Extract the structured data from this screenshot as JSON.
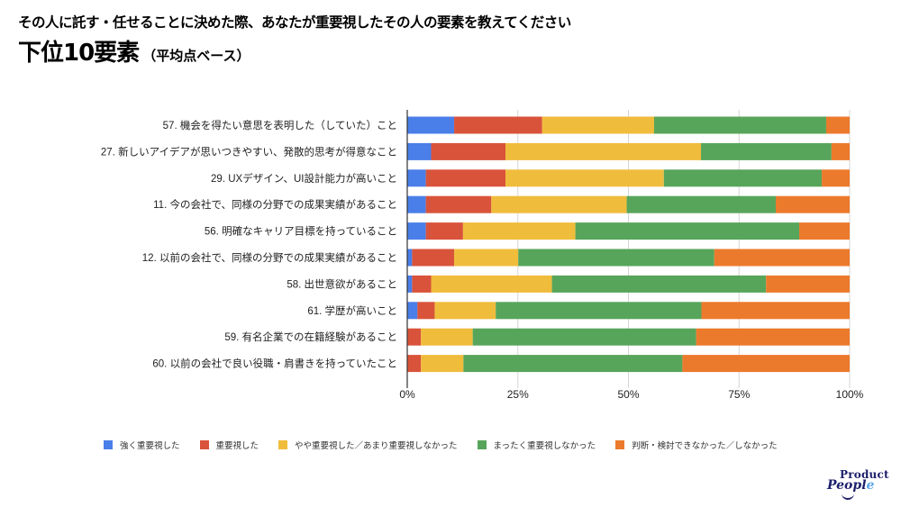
{
  "header": {
    "question": "その人に託す・任せることに決めた際、あなたが重要視したその人の要素を教えてください",
    "title_main": "下位10要素",
    "title_sub": "（平均点ベース）"
  },
  "logo": {
    "line1": "Product",
    "line2_a": "Peop",
    "line2_b": "l",
    "line2_c": "e"
  },
  "chart_data": {
    "type": "bar",
    "orientation": "horizontal",
    "stacked": "percent",
    "title": "下位10要素（平均点ベース）",
    "xlabel": "",
    "ylabel": "",
    "xlim": [
      0,
      100
    ],
    "x_ticks": [
      "0%",
      "25%",
      "50%",
      "75%",
      "100%"
    ],
    "x_tick_values": [
      0,
      25,
      50,
      75,
      100
    ],
    "grid": true,
    "legend_position": "bottom",
    "categories": [
      "57. 機会を得たい意思を表明した（していた）こと",
      "27. 新しいアイデアが思いつきやすい、発散的思考が得意なこと",
      "29. UXデザイン、UI設計能力が高いこと",
      "11. 今の会社で、同様の分野での成果実績があること",
      "56. 明確なキャリア目標を持っていること",
      "12. 以前の会社で、同様の分野での成果実績があること",
      "58. 出世意欲があること",
      "61. 学歴が高いこと",
      "59. 有名企業での在籍経験があること",
      "60. 以前の会社で良い役職・肩書きを持っていたこと"
    ],
    "series": [
      {
        "name": "強く重要視した",
        "color": "#4a7ee8",
        "values": [
          10.6,
          5.4,
          4.2,
          4.2,
          4.2,
          1.1,
          1.1,
          2.3,
          0.0,
          0.0
        ]
      },
      {
        "name": "重要視した",
        "color": "#d9533b",
        "values": [
          19.9,
          16.8,
          18.0,
          14.8,
          8.4,
          9.5,
          4.3,
          3.9,
          3.1,
          3.1
        ]
      },
      {
        "name": "やや重要視した／あまり重要視しなかった",
        "color": "#f0bc3c",
        "values": [
          25.3,
          44.2,
          35.8,
          30.6,
          25.4,
          14.5,
          27.3,
          13.8,
          11.7,
          9.6
        ]
      },
      {
        "name": "まったく重要視しなかった",
        "color": "#57a55a",
        "values": [
          38.9,
          29.5,
          35.7,
          33.7,
          50.6,
          44.3,
          48.4,
          46.5,
          50.5,
          49.5
        ]
      },
      {
        "name": "判断・検討できなかった／しなかった",
        "color": "#ec7a2c",
        "values": [
          5.3,
          4.1,
          6.3,
          16.7,
          11.4,
          30.6,
          18.9,
          33.5,
          34.7,
          37.8
        ]
      }
    ]
  }
}
